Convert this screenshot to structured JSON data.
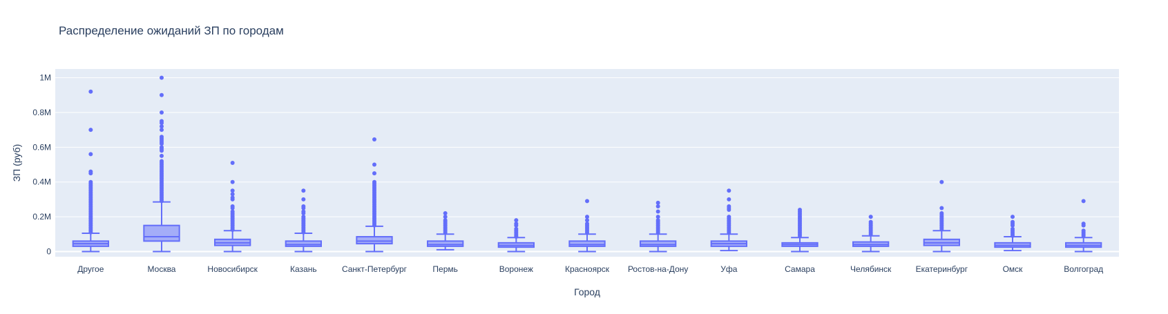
{
  "chart_data": {
    "type": "box",
    "title": "Распределение ожиданий ЗП по городам",
    "xlabel": "Город",
    "ylabel": "ЗП (руб)",
    "ylim": [
      -30000,
      1050000
    ],
    "y_ticks": [
      0,
      200000,
      400000,
      600000,
      800000,
      1000000
    ],
    "y_tick_labels": [
      "0",
      "0.2M",
      "0.4M",
      "0.6M",
      "0.8M",
      "1M"
    ],
    "grid": true,
    "colors": {
      "box": "#636efa",
      "plot_bg": "#e5ecf6",
      "grid": "#ffffff"
    },
    "categories": [
      "Другое",
      "Москва",
      "Новосибирск",
      "Казань",
      "Санкт-Петербург",
      "Пермь",
      "Воронеж",
      "Красноярск",
      "Ростов-на-Дону",
      "Уфа",
      "Самара",
      "Челябинск",
      "Екатеринбург",
      "Омск",
      "Волгоград"
    ],
    "boxes": [
      {
        "category": "Другое",
        "lowerfence": 0,
        "q1": 30000,
        "median": 45000,
        "q3": 60000,
        "upperfence": 105000,
        "outliers": [
          920000,
          700000,
          560000,
          460000,
          450000,
          400000,
          390000,
          380000,
          370000,
          360000,
          350000,
          340000,
          330000,
          320000,
          310000,
          300000,
          290000,
          280000,
          270000,
          260000,
          250000,
          240000,
          230000,
          220000,
          210000,
          200000,
          190000,
          180000,
          170000,
          160000,
          150000,
          140000,
          130000,
          120000,
          110000
        ]
      },
      {
        "category": "Москва",
        "lowerfence": 0,
        "q1": 60000,
        "median": 85000,
        "q3": 150000,
        "upperfence": 285000,
        "outliers": [
          1000000,
          900000,
          800000,
          750000,
          740000,
          720000,
          700000,
          660000,
          650000,
          640000,
          630000,
          620000,
          600000,
          590000,
          580000,
          550000,
          520000,
          510000,
          500000,
          490000,
          480000,
          470000,
          460000,
          450000,
          440000,
          430000,
          420000,
          410000,
          400000,
          390000,
          380000,
          370000,
          360000,
          350000,
          340000,
          330000,
          320000,
          310000,
          300000,
          290000
        ]
      },
      {
        "category": "Новосибирск",
        "lowerfence": 0,
        "q1": 35000,
        "median": 50000,
        "q3": 70000,
        "upperfence": 120000,
        "outliers": [
          510000,
          400000,
          350000,
          330000,
          310000,
          300000,
          260000,
          250000,
          230000,
          220000,
          210000,
          200000,
          190000,
          180000,
          170000,
          160000,
          150000,
          140000,
          130000,
          125000
        ]
      },
      {
        "category": "Казань",
        "lowerfence": 0,
        "q1": 30000,
        "median": 40000,
        "q3": 60000,
        "upperfence": 105000,
        "outliers": [
          350000,
          300000,
          260000,
          250000,
          230000,
          220000,
          200000,
          190000,
          180000,
          170000,
          160000,
          150000,
          140000,
          130000,
          120000,
          110000
        ]
      },
      {
        "category": "Санкт-Петербург",
        "lowerfence": 0,
        "q1": 45000,
        "median": 60000,
        "q3": 85000,
        "upperfence": 145000,
        "outliers": [
          645000,
          500000,
          450000,
          400000,
          390000,
          380000,
          370000,
          360000,
          350000,
          340000,
          330000,
          320000,
          310000,
          300000,
          290000,
          280000,
          270000,
          260000,
          250000,
          240000,
          230000,
          220000,
          210000,
          200000,
          190000,
          180000,
          170000,
          160000,
          150000
        ]
      },
      {
        "category": "Пермь",
        "lowerfence": 10000,
        "q1": 30000,
        "median": 40000,
        "q3": 60000,
        "upperfence": 100000,
        "outliers": [
          220000,
          200000,
          180000,
          170000,
          160000,
          150000,
          140000,
          130000,
          120000,
          110000
        ]
      },
      {
        "category": "Воронеж",
        "lowerfence": 0,
        "q1": 25000,
        "median": 35000,
        "q3": 50000,
        "upperfence": 80000,
        "outliers": [
          180000,
          160000,
          150000,
          130000,
          120000,
          110000,
          100000,
          90000,
          85000
        ]
      },
      {
        "category": "Красноярск",
        "lowerfence": 0,
        "q1": 30000,
        "median": 40000,
        "q3": 60000,
        "upperfence": 100000,
        "outliers": [
          290000,
          200000,
          180000,
          160000,
          150000,
          140000,
          130000,
          120000,
          110000
        ]
      },
      {
        "category": "Ростов-на-Дону",
        "lowerfence": 0,
        "q1": 30000,
        "median": 40000,
        "q3": 60000,
        "upperfence": 100000,
        "outliers": [
          280000,
          260000,
          230000,
          200000,
          180000,
          170000,
          160000,
          150000,
          140000,
          130000,
          120000,
          110000
        ]
      },
      {
        "category": "Уфа",
        "lowerfence": 5000,
        "q1": 30000,
        "median": 45000,
        "q3": 60000,
        "upperfence": 100000,
        "outliers": [
          350000,
          300000,
          260000,
          250000,
          240000,
          200000,
          190000,
          180000,
          170000,
          160000,
          150000,
          140000,
          130000,
          120000,
          110000
        ]
      },
      {
        "category": "Самара",
        "lowerfence": 0,
        "q1": 30000,
        "median": 40000,
        "q3": 50000,
        "upperfence": 80000,
        "outliers": [
          240000,
          230000,
          220000,
          210000,
          200000,
          190000,
          180000,
          170000,
          160000,
          150000,
          140000,
          130000,
          120000,
          110000,
          100000,
          90000
        ]
      },
      {
        "category": "Челябинск",
        "lowerfence": 0,
        "q1": 30000,
        "median": 40000,
        "q3": 55000,
        "upperfence": 90000,
        "outliers": [
          200000,
          170000,
          160000,
          150000,
          140000,
          130000,
          120000,
          110000,
          100000
        ]
      },
      {
        "category": "Екатеринбург",
        "lowerfence": 0,
        "q1": 35000,
        "median": 50000,
        "q3": 70000,
        "upperfence": 120000,
        "outliers": [
          400000,
          250000,
          220000,
          210000,
          200000,
          190000,
          180000,
          170000,
          160000,
          150000,
          140000,
          130000
        ]
      },
      {
        "category": "Омск",
        "lowerfence": 5000,
        "q1": 25000,
        "median": 35000,
        "q3": 50000,
        "upperfence": 85000,
        "outliers": [
          200000,
          170000,
          160000,
          150000,
          130000,
          120000,
          110000,
          100000,
          90000
        ]
      },
      {
        "category": "Волгоград",
        "lowerfence": 0,
        "q1": 25000,
        "median": 35000,
        "q3": 50000,
        "upperfence": 80000,
        "outliers": [
          290000,
          160000,
          150000,
          120000,
          110000,
          100000,
          90000
        ]
      }
    ]
  }
}
